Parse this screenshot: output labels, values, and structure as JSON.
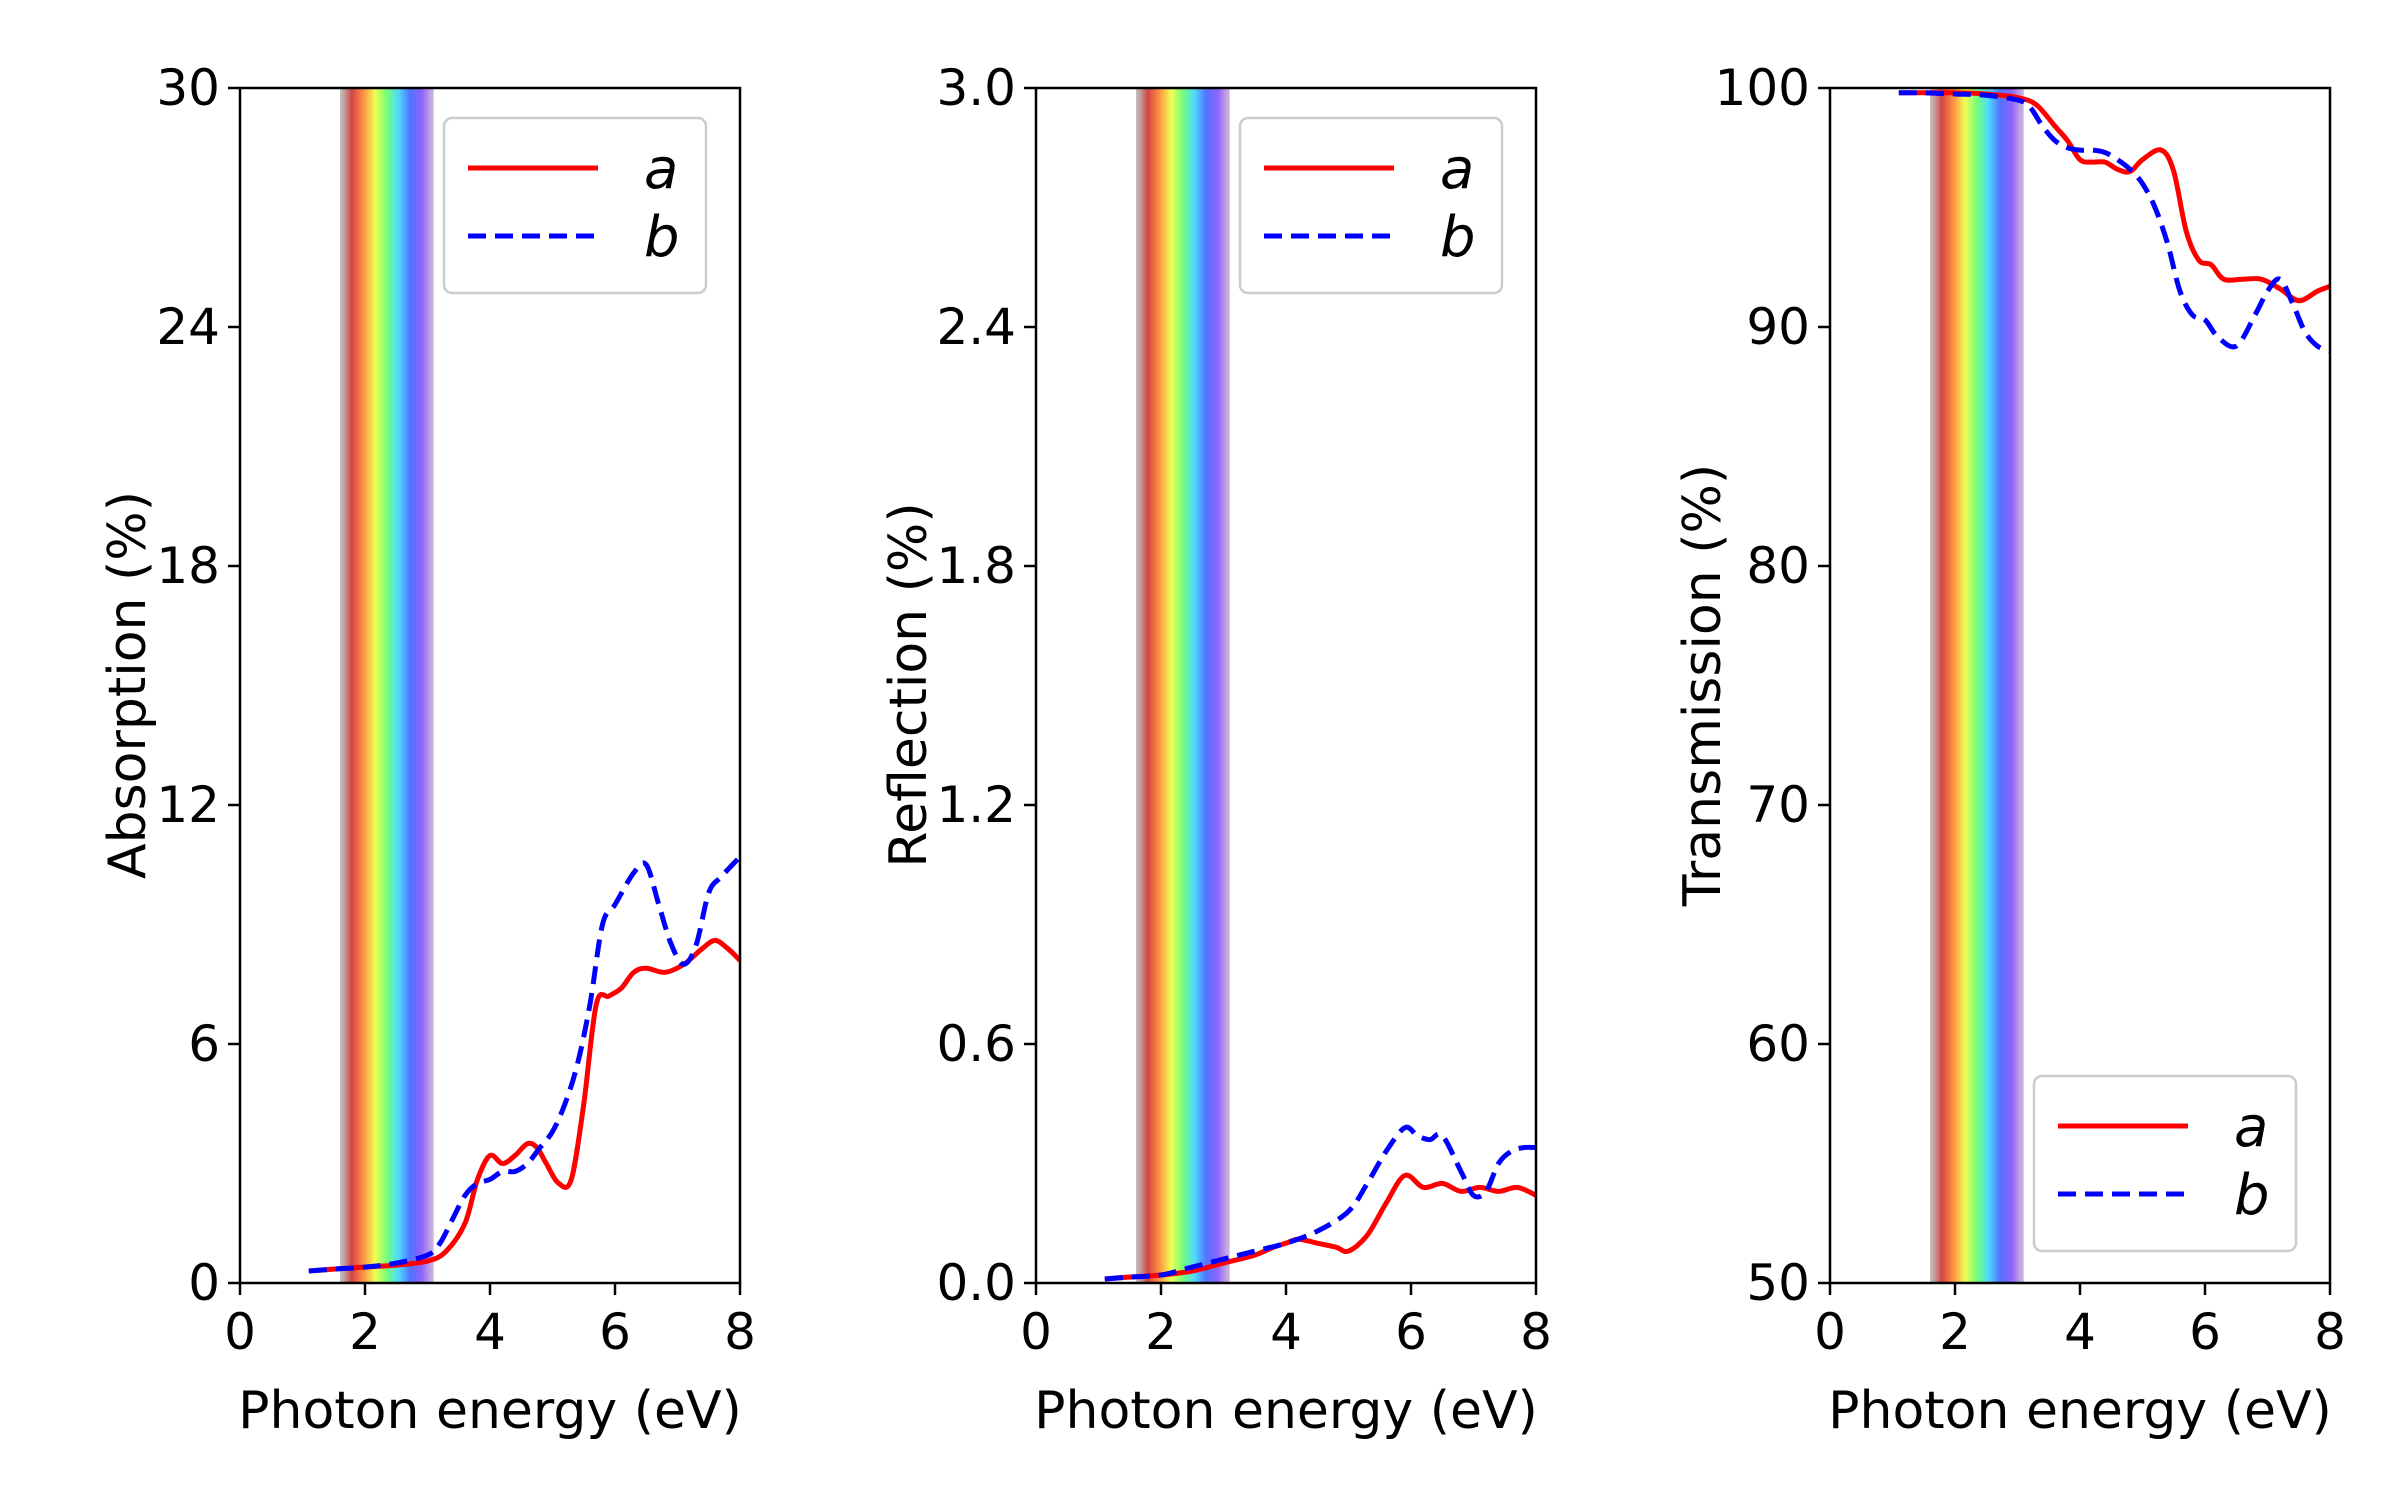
{
  "colors": {
    "series_a": "#ff0000",
    "series_b": "#0000ff",
    "frame": "#000000",
    "visible_band_stops": [
      "#9a9a9a",
      "#d23a3a",
      "#ff8c3a",
      "#f0ff4a",
      "#6dff73",
      "#45d8ff",
      "#4a6bff",
      "#8a5cff",
      "#b08aca"
    ]
  },
  "chart_data": [
    {
      "type": "line",
      "ylabel": "Absorption (%)",
      "xlabel": "Photon energy (eV)",
      "xlim": [
        0,
        8
      ],
      "ylim": [
        0,
        30
      ],
      "xticks": [
        "0",
        "2",
        "4",
        "6",
        "8"
      ],
      "yticks": [
        "0",
        "6",
        "12",
        "18",
        "24",
        "30"
      ],
      "visible_band": [
        1.6,
        3.1
      ],
      "legend_position": "upper right",
      "series": [
        {
          "name": "a",
          "style": "solid",
          "x": [
            1.1,
            1.5,
            2.0,
            2.5,
            3.0,
            3.3,
            3.6,
            3.8,
            4.0,
            4.2,
            4.4,
            4.6,
            4.75,
            4.9,
            5.1,
            5.3,
            5.5,
            5.7,
            5.9,
            6.1,
            6.3,
            6.5,
            6.8,
            7.1,
            7.4,
            7.6,
            7.8,
            8.0
          ],
          "y": [
            0.3,
            0.35,
            0.4,
            0.45,
            0.55,
            0.8,
            1.5,
            2.6,
            3.2,
            3.0,
            3.2,
            3.5,
            3.4,
            3.0,
            2.5,
            2.6,
            4.5,
            7.0,
            7.2,
            7.4,
            7.8,
            7.9,
            7.8,
            8.0,
            8.4,
            8.6,
            8.4,
            8.1
          ]
        },
        {
          "name": "b",
          "style": "dashed",
          "x": [
            1.1,
            1.5,
            2.0,
            2.5,
            3.0,
            3.2,
            3.4,
            3.6,
            3.8,
            4.0,
            4.2,
            4.4,
            4.6,
            4.8,
            5.0,
            5.2,
            5.4,
            5.6,
            5.8,
            6.0,
            6.3,
            6.5,
            6.7,
            6.9,
            7.1,
            7.3,
            7.5,
            7.7,
            8.0
          ],
          "y": [
            0.3,
            0.35,
            0.4,
            0.5,
            0.7,
            1.0,
            1.6,
            2.2,
            2.5,
            2.6,
            2.8,
            2.8,
            3.0,
            3.4,
            3.8,
            4.5,
            5.5,
            7.0,
            9.0,
            9.5,
            10.3,
            10.5,
            9.5,
            8.5,
            8.0,
            8.5,
            9.8,
            10.2,
            10.7
          ]
        }
      ]
    },
    {
      "type": "line",
      "ylabel": "Reflection (%)",
      "xlabel": "Photon energy (eV)",
      "xlim": [
        0,
        8
      ],
      "ylim": [
        0,
        3
      ],
      "xticks": [
        "0",
        "2",
        "4",
        "6",
        "8"
      ],
      "yticks": [
        "0.0",
        "0.6",
        "1.2",
        "1.8",
        "2.4",
        "3.0"
      ],
      "visible_band": [
        1.6,
        3.1
      ],
      "legend_position": "upper right",
      "series": [
        {
          "name": "a",
          "style": "solid",
          "x": [
            1.1,
            1.5,
            2.0,
            2.5,
            3.0,
            3.5,
            3.8,
            4.0,
            4.2,
            4.5,
            4.8,
            5.0,
            5.3,
            5.6,
            5.9,
            6.2,
            6.5,
            6.8,
            7.1,
            7.4,
            7.7,
            8.0
          ],
          "y": [
            0.01,
            0.015,
            0.02,
            0.03,
            0.05,
            0.07,
            0.09,
            0.1,
            0.11,
            0.1,
            0.09,
            0.08,
            0.12,
            0.2,
            0.27,
            0.24,
            0.25,
            0.23,
            0.24,
            0.23,
            0.24,
            0.22
          ]
        },
        {
          "name": "b",
          "style": "dashed",
          "x": [
            1.1,
            1.5,
            2.0,
            2.5,
            3.0,
            3.5,
            4.0,
            4.5,
            5.0,
            5.3,
            5.6,
            5.9,
            6.1,
            6.3,
            6.5,
            6.8,
            7.0,
            7.2,
            7.4,
            7.6,
            7.8,
            8.0
          ],
          "y": [
            0.01,
            0.015,
            0.02,
            0.04,
            0.06,
            0.08,
            0.1,
            0.13,
            0.18,
            0.25,
            0.33,
            0.39,
            0.37,
            0.36,
            0.37,
            0.28,
            0.22,
            0.23,
            0.3,
            0.33,
            0.34,
            0.34
          ]
        }
      ]
    },
    {
      "type": "line",
      "ylabel": "Transmission (%)",
      "xlabel": "Photon energy (eV)",
      "xlim": [
        0,
        8
      ],
      "ylim": [
        50,
        100
      ],
      "xticks": [
        "0",
        "2",
        "4",
        "6",
        "8"
      ],
      "yticks": [
        "50",
        "60",
        "70",
        "80",
        "90",
        "100"
      ],
      "visible_band": [
        1.6,
        3.1
      ],
      "legend_position": "lower right",
      "series": [
        {
          "name": "a",
          "style": "solid",
          "x": [
            1.1,
            1.5,
            2.0,
            2.5,
            3.0,
            3.3,
            3.6,
            3.8,
            4.0,
            4.2,
            4.4,
            4.6,
            4.8,
            5.0,
            5.3,
            5.5,
            5.7,
            5.9,
            6.1,
            6.3,
            6.6,
            6.9,
            7.2,
            7.5,
            7.8,
            8.0
          ],
          "y": [
            99.8,
            99.8,
            99.8,
            99.75,
            99.6,
            99.3,
            98.4,
            97.8,
            97.0,
            96.9,
            96.9,
            96.6,
            96.5,
            97.0,
            97.4,
            96.5,
            94.0,
            92.8,
            92.6,
            92.0,
            92.0,
            92.0,
            91.6,
            91.1,
            91.5,
            91.7
          ]
        },
        {
          "name": "b",
          "style": "dashed",
          "x": [
            1.1,
            1.5,
            2.0,
            2.5,
            3.0,
            3.2,
            3.4,
            3.6,
            3.8,
            4.0,
            4.2,
            4.4,
            4.6,
            4.8,
            5.0,
            5.2,
            5.4,
            5.6,
            5.8,
            6.0,
            6.2,
            6.5,
            6.8,
            7.0,
            7.2,
            7.4,
            7.6,
            7.8,
            8.0
          ],
          "y": [
            99.8,
            99.8,
            99.75,
            99.7,
            99.5,
            99.2,
            98.4,
            97.8,
            97.5,
            97.4,
            97.4,
            97.3,
            97.0,
            96.6,
            96.0,
            95.0,
            93.5,
            91.5,
            90.5,
            90.3,
            89.6,
            89.2,
            90.5,
            91.5,
            92.0,
            91.0,
            89.8,
            89.2,
            89.0
          ]
        }
      ]
    }
  ]
}
